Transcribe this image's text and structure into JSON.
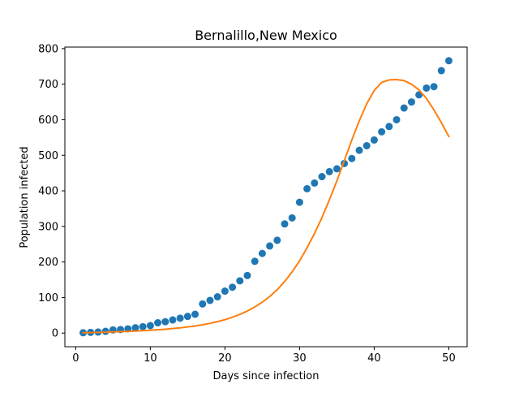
{
  "chart_data": {
    "type": "scatter",
    "title": "Bernalillo,New Mexico",
    "xlabel": "Days since infection",
    "ylabel": "Population infected",
    "xlim": [
      -1.45,
      52.45
    ],
    "ylim": [
      -38.3,
      804.3
    ],
    "xticks": [
      0,
      10,
      20,
      30,
      40,
      50
    ],
    "yticks": [
      0,
      100,
      200,
      300,
      400,
      500,
      600,
      700,
      800
    ],
    "grid": false,
    "legend": "none",
    "series": [
      {
        "kind": "scatter",
        "color": "#1f77b4",
        "x": [
          1,
          2,
          3,
          4,
          5,
          6,
          7,
          8,
          9,
          10,
          11,
          12,
          13,
          14,
          15,
          16,
          17,
          18,
          19,
          20,
          21,
          22,
          23,
          24,
          25,
          26,
          27,
          28,
          29,
          30,
          31,
          32,
          33,
          34,
          35,
          36,
          37,
          38,
          39,
          40,
          41,
          42,
          43,
          44,
          45,
          46,
          47,
          48,
          49,
          50
        ],
        "y": [
          1,
          2,
          3,
          5,
          9,
          10,
          12,
          15,
          18,
          21,
          29,
          32,
          37,
          42,
          47,
          53,
          82,
          92,
          102,
          118,
          129,
          147,
          162,
          202,
          224,
          245,
          261,
          307,
          324,
          368,
          406,
          422,
          440,
          454,
          462,
          477,
          491,
          514,
          527,
          543,
          566,
          581,
          600,
          633,
          650,
          670,
          689,
          693,
          738,
          766
        ]
      },
      {
        "kind": "line",
        "color": "#ff7f0e",
        "x": [
          1,
          2,
          3,
          4,
          5,
          6,
          7,
          8,
          9,
          10,
          11,
          12,
          13,
          14,
          15,
          16,
          17,
          18,
          19,
          20,
          21,
          22,
          23,
          24,
          25,
          26,
          27,
          28,
          29,
          30,
          31,
          32,
          33,
          34,
          35,
          36,
          37,
          38,
          39,
          40,
          41,
          42,
          43,
          44,
          45,
          46,
          47,
          48,
          49,
          50
        ],
        "y": [
          1,
          1.5,
          2,
          2.6,
          3.3,
          4,
          4.8,
          5.7,
          6.7,
          7.9,
          9.3,
          10.9,
          12.7,
          14.8,
          17.2,
          20,
          23.5,
          27.5,
          32.2,
          37.8,
          44.5,
          52.5,
          62,
          73.5,
          87,
          103,
          122,
          145,
          172,
          203,
          240,
          280,
          325,
          375,
          428,
          485,
          543,
          597,
          645,
          682,
          705,
          712,
          713,
          710,
          700,
          684,
          660,
          628,
          592,
          553
        ]
      }
    ]
  }
}
